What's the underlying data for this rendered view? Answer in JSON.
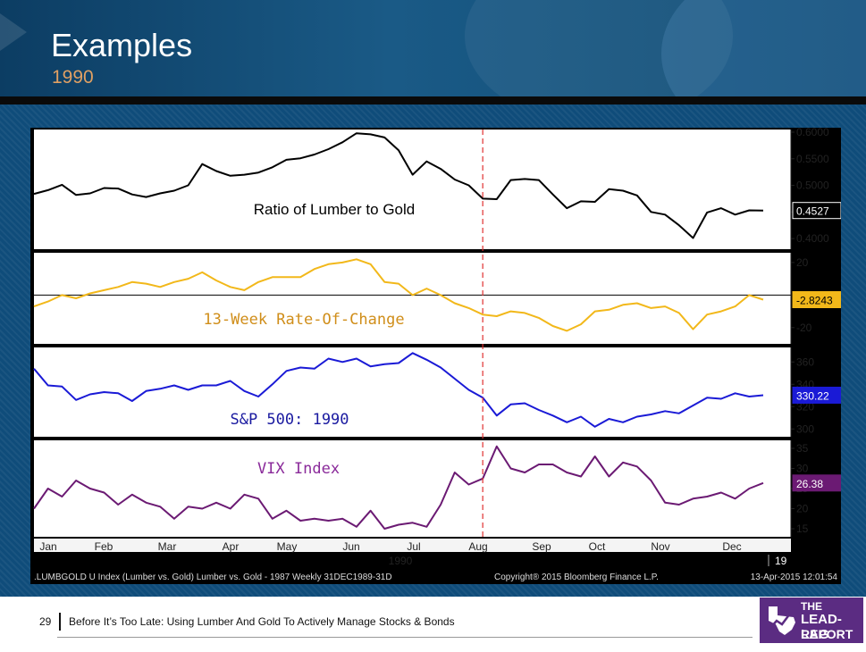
{
  "header": {
    "title": "Examples",
    "subtitle": "1990"
  },
  "footer": {
    "page_number": "29",
    "text": "Before It’s Too Late: Using Lumber And Gold To Actively Manage Stocks & Bonds",
    "logo_line1": "THE",
    "logo_line2": "LEAD-LAG",
    "logo_line3": "REPORT"
  },
  "chart_data": {
    "type": "line",
    "x_labels": [
      "Jan",
      "Feb",
      "Mar",
      "Apr",
      "May",
      "Jun",
      "Jul",
      "Aug",
      "Sep",
      "Oct",
      "Nov",
      "Dec"
    ],
    "year_label": "1990",
    "year_end_label": "19",
    "source_text": ".LUMBGOLD U Index (Lumber vs. Gold) Lumber vs. Gold - 1987  Weekly 31DEC1989-31D",
    "copyright_text": "Copyright® 2015 Bloomberg Finance L.P.",
    "timestamp_text": "13-Apr-2015 12:01:54",
    "event_line_week": 32,
    "colors": {
      "ratio": "#000000",
      "roc": "#f2b81a",
      "spx": "#1a1ad6",
      "vix": "#6b1a73"
    },
    "panels": [
      {
        "name": "Ratio of Lumber to Gold",
        "ylim": [
          0.38,
          0.605
        ],
        "ticks": [
          0.4,
          0.45,
          0.5,
          0.55,
          0.6
        ],
        "tick_labels": [
          "0.4000",
          "0.4500",
          "0.5000",
          "0.5500",
          "0.6000"
        ],
        "last_value_label": "0.4527",
        "last_value": 0.4527,
        "values": [
          0.484,
          0.491,
          0.501,
          0.482,
          0.485,
          0.495,
          0.494,
          0.483,
          0.478,
          0.485,
          0.49,
          0.5,
          0.54,
          0.527,
          0.518,
          0.52,
          0.524,
          0.534,
          0.548,
          0.551,
          0.558,
          0.568,
          0.581,
          0.598,
          0.596,
          0.59,
          0.566,
          0.52,
          0.545,
          0.531,
          0.511,
          0.5,
          0.475,
          0.474,
          0.51,
          0.512,
          0.51,
          0.483,
          0.457,
          0.47,
          0.469,
          0.493,
          0.49,
          0.481,
          0.45,
          0.445,
          0.425,
          0.401,
          0.449,
          0.457,
          0.445,
          0.453,
          0.4527
        ]
      },
      {
        "name": "13-Week Rate-Of-Change",
        "ylim": [
          -30,
          26
        ],
        "ticks": [
          -20,
          20
        ],
        "tick_labels": [
          "-20",
          "20"
        ],
        "zero_line": 0,
        "last_value_label": "-2.8243",
        "last_value": -2.8243,
        "values": [
          -7,
          -4,
          0,
          -2,
          1,
          3,
          5,
          8,
          7,
          5,
          8,
          10,
          14,
          9,
          5,
          3,
          8,
          11,
          11,
          11,
          16,
          19,
          20,
          22,
          19,
          8,
          7,
          0,
          4,
          0,
          -5,
          -8,
          -12,
          -13,
          -10,
          -11,
          -14,
          -19,
          -22,
          -18,
          -10,
          -9,
          -6,
          -5,
          -8,
          -7,
          -11,
          -21,
          -12,
          -10,
          -7,
          0,
          -2.8243
        ]
      },
      {
        "name": "S&P 500: 1990",
        "ylim": [
          293,
          373
        ],
        "ticks": [
          300,
          320,
          340,
          360
        ],
        "tick_labels": [
          "300",
          "320",
          "340",
          "360"
        ],
        "last_value_label": "330.22",
        "last_value": 330.22,
        "values": [
          354,
          339,
          338,
          326,
          331,
          333,
          332,
          325,
          334,
          336,
          339,
          335,
          339,
          339,
          343,
          334,
          329,
          340,
          352,
          355,
          354,
          363,
          360,
          363,
          356,
          358,
          359,
          368,
          362,
          355,
          345,
          335,
          328,
          312,
          322,
          323,
          317,
          312,
          306,
          311,
          302,
          309,
          306,
          311,
          313,
          316,
          314,
          321,
          328,
          327,
          332,
          329,
          330.22
        ]
      },
      {
        "name": "VIX Index",
        "ylim": [
          13,
          37
        ],
        "ticks": [
          15,
          20,
          25,
          30,
          35
        ],
        "tick_labels": [
          "15",
          "20",
          "25",
          "30",
          "35"
        ],
        "last_value_label": "26.38",
        "last_value": 26.38,
        "values": [
          20,
          25,
          23,
          27,
          25,
          24,
          21,
          23.5,
          21.5,
          20.5,
          17.5,
          20.5,
          20,
          21.5,
          20,
          23.5,
          22.5,
          17.5,
          19.5,
          17,
          17.5,
          17,
          17.5,
          15.5,
          19.5,
          15,
          16,
          16.5,
          15.5,
          21,
          29,
          26,
          27.5,
          35.5,
          30,
          29,
          31,
          31,
          29,
          28,
          33,
          28,
          31.5,
          30.5,
          27,
          21.5,
          21,
          22.5,
          23,
          24,
          22.5,
          25,
          26.38
        ]
      }
    ]
  }
}
